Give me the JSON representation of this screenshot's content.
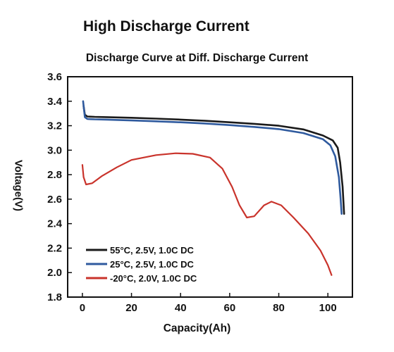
{
  "page": {
    "heading": "High Discharge Current"
  },
  "chart_data": {
    "type": "line",
    "title": "Discharge Curve at Diff. Discharge Current",
    "xlabel": "Capacity(Ah)",
    "ylabel": "Voltage(V)",
    "xlim": [
      -6,
      110
    ],
    "ylim": [
      1.8,
      3.6
    ],
    "xticks": [
      0,
      20,
      40,
      60,
      80,
      100
    ],
    "yticks": [
      1.8,
      2.0,
      2.2,
      2.4,
      2.6,
      2.8,
      3.0,
      3.2,
      3.4,
      3.6
    ],
    "ytick_labels": [
      "1.8",
      "2.0",
      "2.2",
      "2.4",
      "2.6",
      "2.8",
      "3.0",
      "3.2",
      "3.4",
      "3.6"
    ],
    "grid": false,
    "legend_position": "bottom-left",
    "series": [
      {
        "name": "55°C, 2.5V, 1.0C DC",
        "color": "#1a1a1a",
        "points": [
          [
            0.5,
            3.36
          ],
          [
            1,
            3.29
          ],
          [
            2,
            3.275
          ],
          [
            5,
            3.272
          ],
          [
            10,
            3.27
          ],
          [
            20,
            3.265
          ],
          [
            30,
            3.258
          ],
          [
            40,
            3.25
          ],
          [
            50,
            3.24
          ],
          [
            60,
            3.228
          ],
          [
            70,
            3.215
          ],
          [
            80,
            3.2
          ],
          [
            90,
            3.17
          ],
          [
            98,
            3.12
          ],
          [
            102,
            3.08
          ],
          [
            104,
            3.02
          ],
          [
            105,
            2.9
          ],
          [
            106,
            2.7
          ],
          [
            106.6,
            2.48
          ]
        ]
      },
      {
        "name": "25°C, 2.5V, 1.0C DC",
        "color": "#2f5a9e",
        "points": [
          [
            0.3,
            3.4
          ],
          [
            1,
            3.27
          ],
          [
            2,
            3.255
          ],
          [
            5,
            3.252
          ],
          [
            10,
            3.25
          ],
          [
            20,
            3.243
          ],
          [
            30,
            3.236
          ],
          [
            40,
            3.228
          ],
          [
            50,
            3.218
          ],
          [
            60,
            3.205
          ],
          [
            70,
            3.19
          ],
          [
            80,
            3.172
          ],
          [
            90,
            3.14
          ],
          [
            98,
            3.09
          ],
          [
            101,
            3.04
          ],
          [
            103,
            2.95
          ],
          [
            104.5,
            2.78
          ],
          [
            105.2,
            2.6
          ],
          [
            105.6,
            2.48
          ]
        ]
      },
      {
        "name": "-20°C, 2.0V, 1.0C DC",
        "color": "#c9332b",
        "points": [
          [
            0,
            2.88
          ],
          [
            0.5,
            2.78
          ],
          [
            1.5,
            2.72
          ],
          [
            4,
            2.73
          ],
          [
            8,
            2.79
          ],
          [
            14,
            2.86
          ],
          [
            20,
            2.92
          ],
          [
            30,
            2.96
          ],
          [
            38,
            2.975
          ],
          [
            45,
            2.97
          ],
          [
            52,
            2.94
          ],
          [
            57,
            2.85
          ],
          [
            61,
            2.7
          ],
          [
            64,
            2.55
          ],
          [
            67,
            2.45
          ],
          [
            70,
            2.46
          ],
          [
            74,
            2.55
          ],
          [
            77,
            2.58
          ],
          [
            81,
            2.55
          ],
          [
            86,
            2.45
          ],
          [
            92,
            2.32
          ],
          [
            97,
            2.18
          ],
          [
            100,
            2.06
          ],
          [
            101.5,
            1.98
          ]
        ]
      }
    ]
  }
}
